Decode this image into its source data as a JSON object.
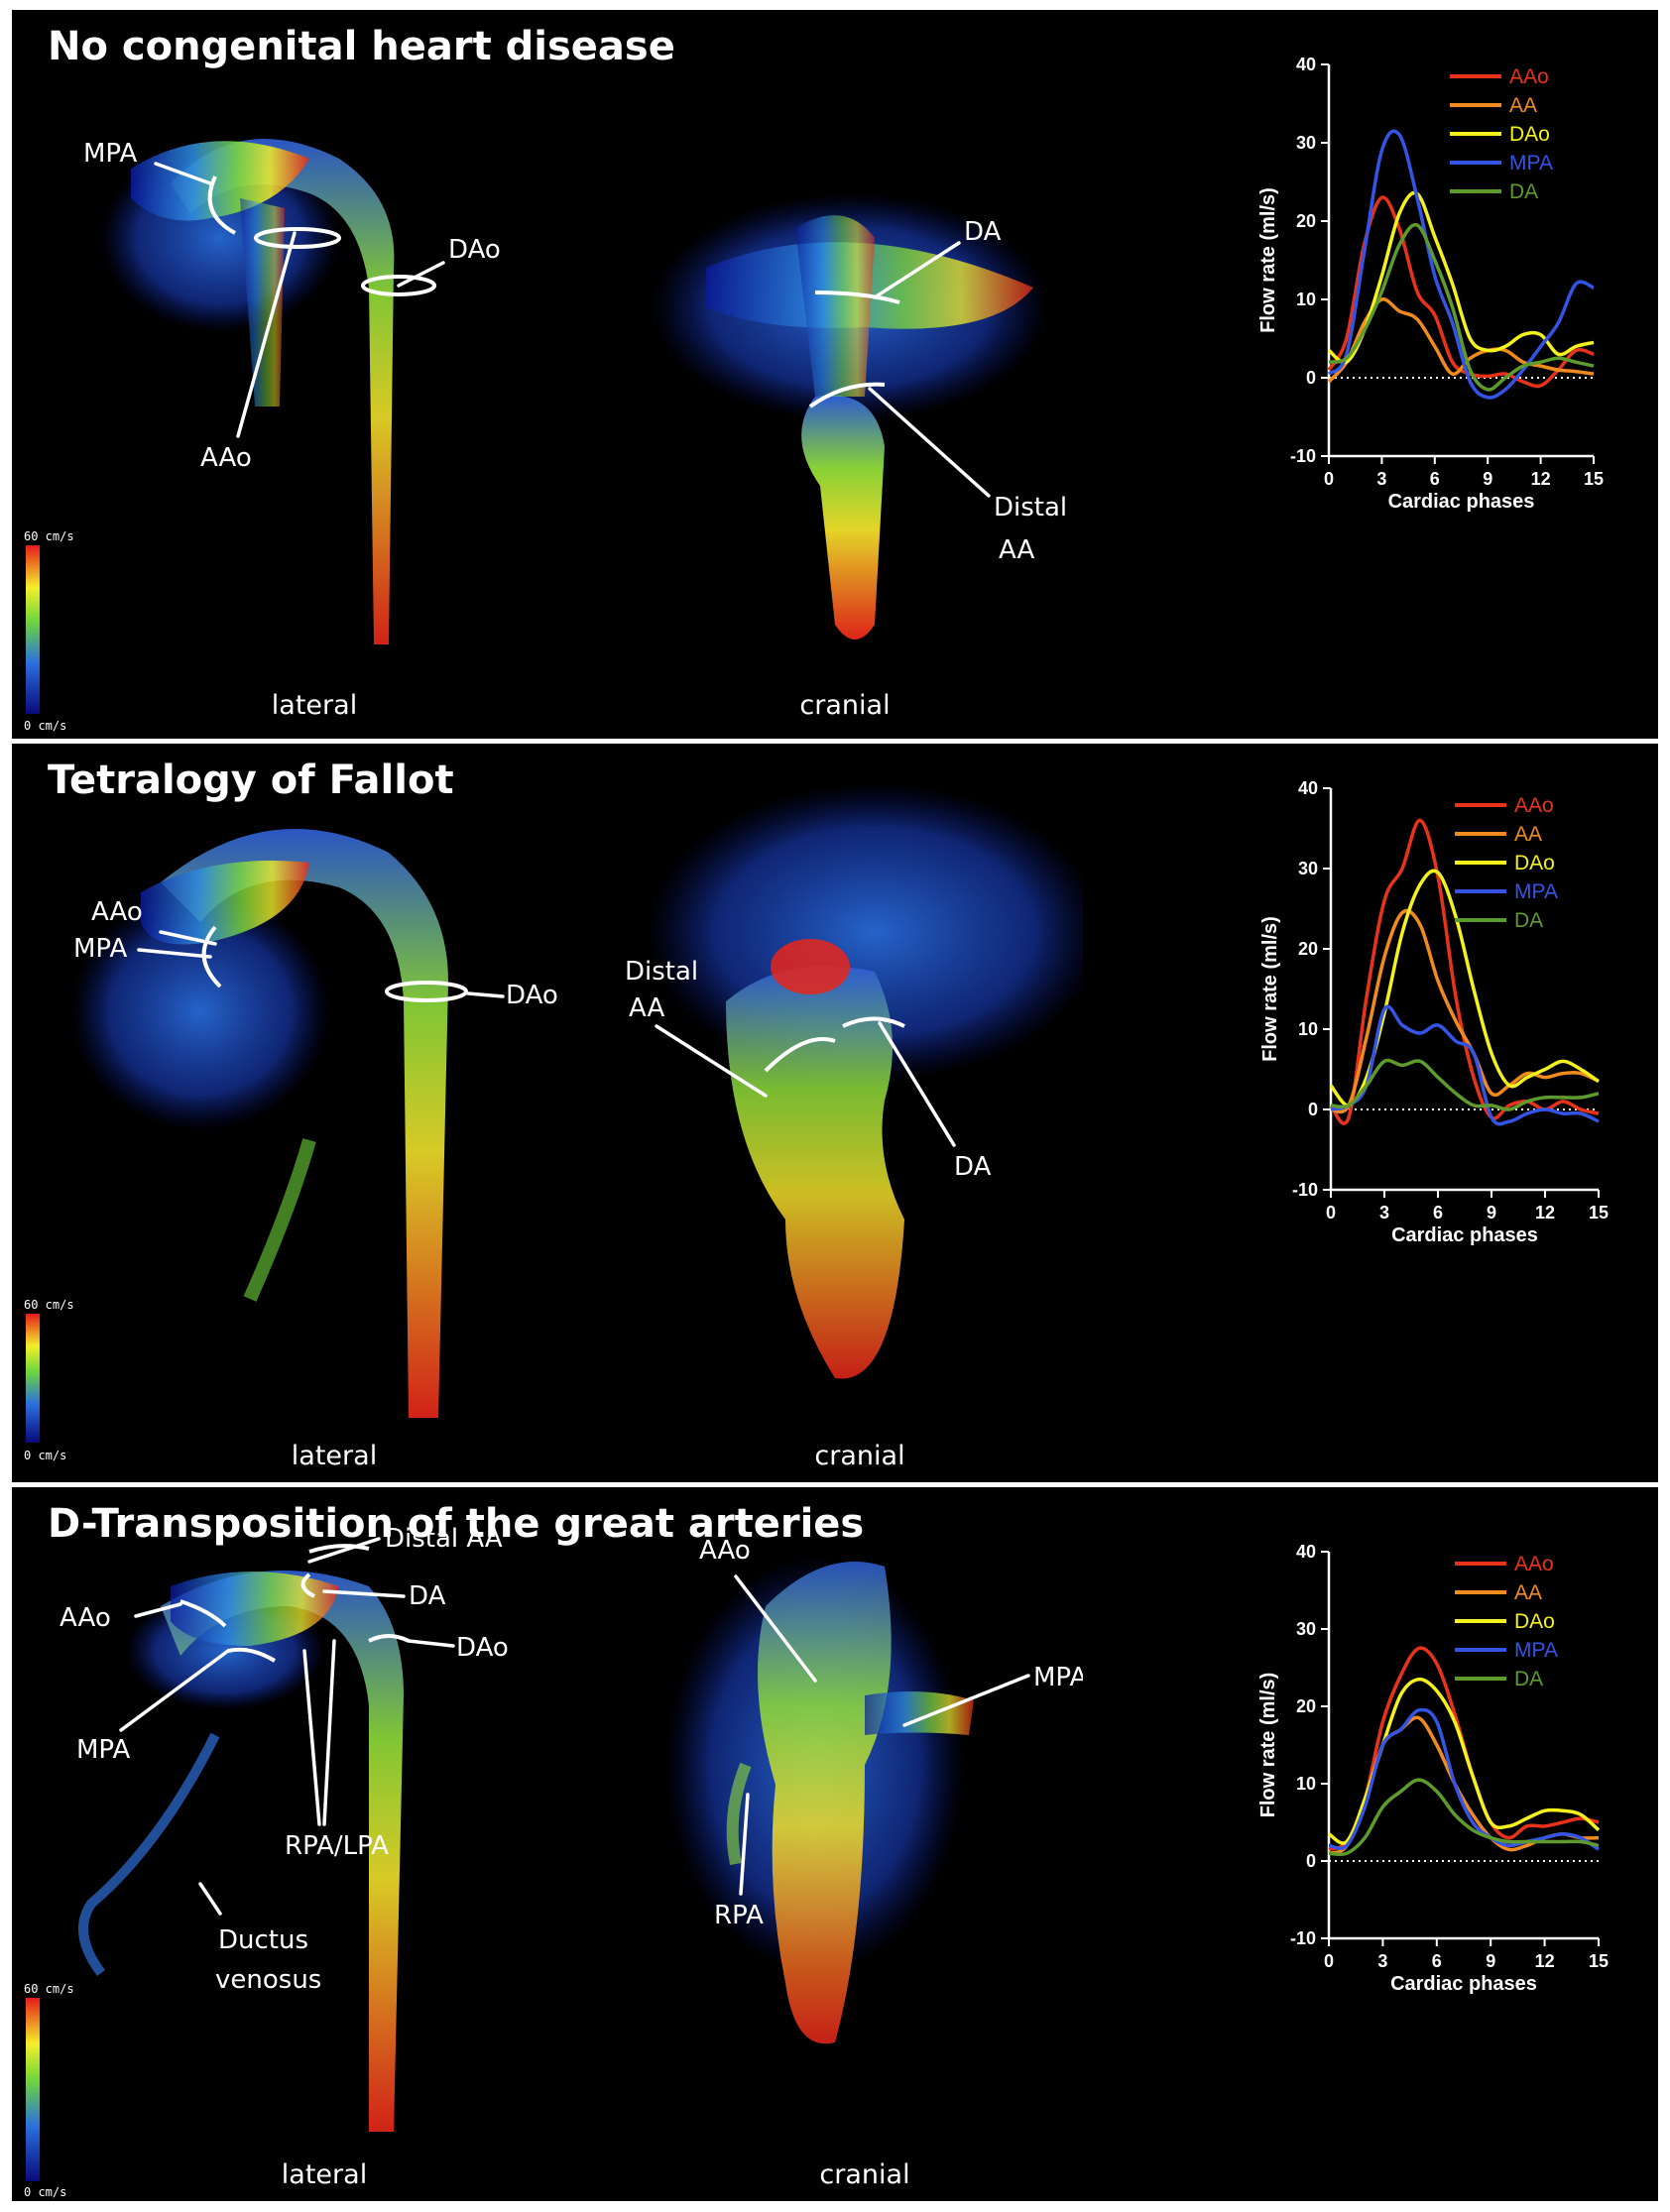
{
  "colors": {
    "AAo": "#e8331a",
    "AA": "#f28b1e",
    "DAo": "#f4f11b",
    "MPA": "#3454e6",
    "DA": "#5e9b2d"
  },
  "panels": [
    {
      "title": "No congenital heart disease",
      "views": [
        "lateral",
        "cranial"
      ],
      "colorbar": {
        "max": "60 cm/s",
        "min": "0 cm/s"
      },
      "annotations": {
        "lateral": [
          "MPA",
          "DAo",
          "AAo"
        ],
        "cranial": [
          "DA",
          "Distal",
          "AA"
        ]
      }
    },
    {
      "title": "Tetralogy of Fallot",
      "views": [
        "lateral",
        "cranial"
      ],
      "colorbar": {
        "max": "60 cm/s",
        "min": "0 cm/s"
      },
      "annotations": {
        "lateral": [
          "AAo",
          "MPA",
          "DAo"
        ],
        "cranial": [
          "Distal",
          "AA",
          "DA"
        ]
      }
    },
    {
      "title": "D-Transposition of the great arteries",
      "views": [
        "lateral",
        "cranial"
      ],
      "colorbar": {
        "max": "60 cm/s",
        "min": "0 cm/s"
      },
      "annotations": {
        "lateral": [
          "Distal AA",
          "AAo",
          "DA",
          "DAo",
          "MPA",
          "RPA/LPA",
          "Ductus",
          "venosus"
        ],
        "cranial": [
          "AAo",
          "MPA",
          "RPA"
        ]
      }
    }
  ],
  "chart_data": [
    {
      "type": "line",
      "xlabel": "Cardiac phases",
      "ylabel": "Flow rate (ml/s)",
      "xlim": [
        0,
        15
      ],
      "ylim": [
        -10,
        40
      ],
      "xticks": [
        0,
        3,
        6,
        9,
        12,
        15
      ],
      "yticks": [
        -10,
        0,
        10,
        20,
        30,
        40
      ],
      "zero_line": "dotted",
      "legend_position": "top-right",
      "x": [
        0,
        1,
        2,
        3,
        4,
        5,
        6,
        7,
        8,
        9,
        10,
        11,
        12,
        13,
        14,
        15
      ],
      "series": [
        {
          "name": "AAo",
          "values": [
            1,
            5,
            17,
            23,
            19,
            11,
            8,
            2,
            0.5,
            0.2,
            0.5,
            -0.5,
            -1,
            1,
            3.5,
            3
          ]
        },
        {
          "name": "AA",
          "values": [
            -0.5,
            2,
            7,
            10,
            8.5,
            7.5,
            4,
            0.5,
            2.5,
            3.5,
            3.5,
            2,
            1.5,
            1,
            0.8,
            0.5
          ]
        },
        {
          "name": "DAo",
          "values": [
            3.5,
            2,
            6,
            13,
            21,
            23.5,
            18,
            12,
            5,
            3.5,
            4,
            5.5,
            5.5,
            3,
            4,
            4.5
          ]
        },
        {
          "name": "MPA",
          "values": [
            0.5,
            3,
            16,
            29,
            31,
            23,
            13,
            7,
            -0.5,
            -2.5,
            -1.5,
            1,
            4,
            7,
            12,
            11.5
          ]
        },
        {
          "name": "DA",
          "values": [
            2,
            2.5,
            6,
            11,
            17,
            19.5,
            15,
            9,
            1,
            -1.5,
            0,
            1.5,
            2,
            2.5,
            2,
            1.5
          ]
        }
      ]
    },
    {
      "type": "line",
      "xlabel": "Cardiac phases",
      "ylabel": "Flow rate (ml/s)",
      "xlim": [
        0,
        15
      ],
      "ylim": [
        -10,
        40
      ],
      "xticks": [
        0,
        3,
        6,
        9,
        12,
        15
      ],
      "yticks": [
        -10,
        0,
        10,
        20,
        30,
        40
      ],
      "zero_line": "dotted",
      "legend_position": "top-right",
      "x": [
        0,
        1,
        2,
        3,
        4,
        5,
        6,
        7,
        8,
        9,
        10,
        11,
        12,
        13,
        14,
        15
      ],
      "series": [
        {
          "name": "AAo",
          "values": [
            0.5,
            -1,
            14,
            26,
            30,
            36,
            29,
            14,
            4,
            -1,
            0.5,
            1,
            0,
            1,
            0,
            -0.5
          ]
        },
        {
          "name": "AA",
          "values": [
            0,
            0.5,
            9,
            19,
            24.5,
            23,
            16,
            11,
            7,
            2,
            3,
            4.5,
            4,
            4.5,
            4.5,
            3.5
          ]
        },
        {
          "name": "DAo",
          "values": [
            3,
            0.5,
            4,
            12,
            22,
            28,
            29.5,
            24,
            15,
            7,
            3,
            4,
            5,
            6,
            5,
            3.5
          ]
        },
        {
          "name": "MPA",
          "values": [
            0,
            0.5,
            3,
            12.5,
            10.5,
            9.5,
            10.5,
            8.5,
            7,
            -1,
            -1.5,
            -0.5,
            0,
            -0.5,
            -0.5,
            -1.5
          ]
        },
        {
          "name": "DA",
          "values": [
            0.5,
            0.5,
            3,
            6,
            5.5,
            6,
            4,
            2,
            0.5,
            0.5,
            0,
            1,
            1.5,
            1.5,
            1.5,
            2
          ]
        }
      ]
    },
    {
      "type": "line",
      "xlabel": "Cardiac phases",
      "ylabel": "Flow rate (ml/s)",
      "xlim": [
        0,
        15
      ],
      "ylim": [
        -10,
        40
      ],
      "xticks": [
        0,
        3,
        6,
        9,
        12,
        15
      ],
      "yticks": [
        -10,
        0,
        10,
        20,
        30,
        40
      ],
      "zero_line": "dotted",
      "legend_position": "top-right",
      "x": [
        0,
        1,
        2,
        3,
        4,
        5,
        6,
        7,
        8,
        9,
        10,
        11,
        12,
        13,
        14,
        15
      ],
      "series": [
        {
          "name": "AAo",
          "values": [
            1.5,
            2.5,
            8,
            18,
            24,
            27.5,
            25.5,
            19,
            11,
            5,
            3,
            4.5,
            4.5,
            5,
            5.5,
            5
          ]
        },
        {
          "name": "AA",
          "values": [
            1,
            2,
            8,
            15,
            17,
            18.5,
            15,
            10,
            6,
            3,
            1.5,
            2,
            3,
            3.5,
            3,
            3
          ]
        },
        {
          "name": "DAo",
          "values": [
            3.5,
            2.5,
            8,
            15,
            21.5,
            23.5,
            22,
            18,
            11,
            5,
            4.5,
            5.5,
            6.5,
            6.5,
            6,
            4
          ]
        },
        {
          "name": "MPA",
          "values": [
            2,
            2,
            7,
            15,
            17,
            19.5,
            18,
            10,
            5,
            3,
            2,
            2.5,
            3,
            3.5,
            3,
            1.5
          ]
        },
        {
          "name": "DA",
          "values": [
            1,
            1,
            3,
            7,
            9,
            10.5,
            9,
            6,
            4,
            3,
            2.5,
            2.5,
            2.5,
            2.5,
            2.5,
            2
          ]
        }
      ]
    }
  ]
}
